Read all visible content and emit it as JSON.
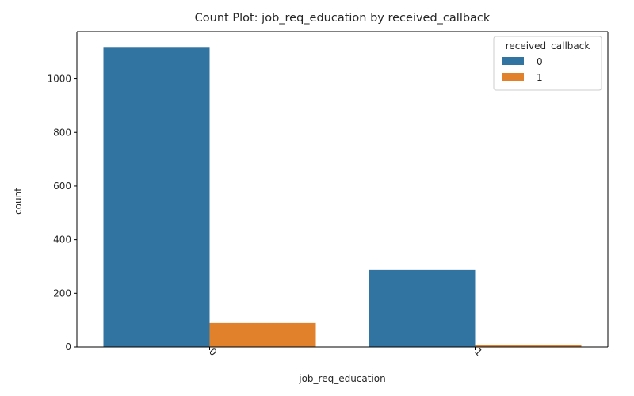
{
  "chart_data": {
    "type": "bar",
    "title": "Count Plot: job_req_education by received_callback",
    "xlabel": "job_req_education",
    "ylabel": "count",
    "categories": [
      "0",
      "1"
    ],
    "series": [
      {
        "name": "0",
        "values": [
          1119,
          287
        ],
        "color": "#3274a1"
      },
      {
        "name": "1",
        "values": [
          89,
          8
        ],
        "color": "#e1812c"
      }
    ],
    "ylim": [
      0,
      1176
    ],
    "yticks": [
      0,
      200,
      400,
      600,
      800,
      1000
    ],
    "legend": {
      "title": "received_callback",
      "position": "top-right"
    },
    "grid": false,
    "xtick_rotation": 45
  }
}
